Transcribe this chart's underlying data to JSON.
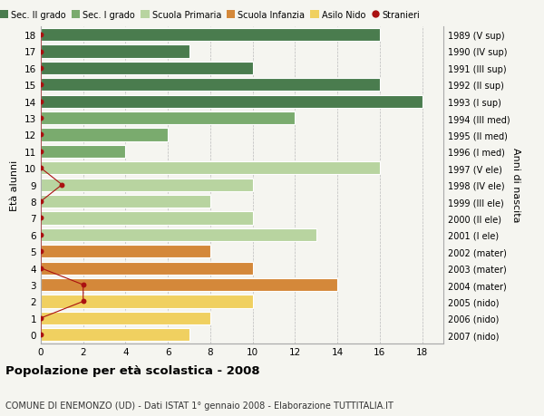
{
  "ages": [
    18,
    17,
    16,
    15,
    14,
    13,
    12,
    11,
    10,
    9,
    8,
    7,
    6,
    5,
    4,
    3,
    2,
    1,
    0
  ],
  "right_labels": [
    "1989 (V sup)",
    "1990 (IV sup)",
    "1991 (III sup)",
    "1992 (II sup)",
    "1993 (I sup)",
    "1994 (III med)",
    "1995 (II med)",
    "1996 (I med)",
    "1997 (V ele)",
    "1998 (IV ele)",
    "1999 (III ele)",
    "2000 (II ele)",
    "2001 (I ele)",
    "2002 (mater)",
    "2003 (mater)",
    "2004 (mater)",
    "2005 (nido)",
    "2006 (nido)",
    "2007 (nido)"
  ],
  "bar_values": [
    16,
    7,
    10,
    16,
    18,
    12,
    6,
    4,
    16,
    10,
    8,
    10,
    13,
    8,
    10,
    14,
    10,
    8,
    7
  ],
  "bar_colors": [
    "#4a7c4e",
    "#4a7c4e",
    "#4a7c4e",
    "#4a7c4e",
    "#4a7c4e",
    "#7aab6e",
    "#7aab6e",
    "#7aab6e",
    "#b8d4a0",
    "#b8d4a0",
    "#b8d4a0",
    "#b8d4a0",
    "#b8d4a0",
    "#d4883a",
    "#d4883a",
    "#d4883a",
    "#f0d060",
    "#f0d060",
    "#f0d060"
  ],
  "stranieri_x": [
    0,
    0,
    0,
    0,
    0,
    0,
    0,
    0,
    0,
    1,
    0,
    0,
    0,
    0,
    0,
    2,
    2,
    0,
    0
  ],
  "legend_labels": [
    "Sec. II grado",
    "Sec. I grado",
    "Scuola Primaria",
    "Scuola Infanzia",
    "Asilo Nido",
    "Stranieri"
  ],
  "legend_colors": [
    "#4a7c4e",
    "#7aab6e",
    "#b8d4a0",
    "#d4883a",
    "#f0d060",
    "#b22222"
  ],
  "title": "Popolazione per età scolastica - 2008",
  "subtitle": "COMUNE DI ENEMONZO (UD) - Dati ISTAT 1° gennaio 2008 - Elaborazione TUTTITALIA.IT",
  "ylabel": "Età alunni",
  "right_ylabel": "Anni di nascita",
  "xlabel_ticks": [
    0,
    2,
    4,
    6,
    8,
    10,
    12,
    14,
    16,
    18
  ],
  "xlim": [
    0,
    19
  ],
  "background_color": "#f5f5f0",
  "grid_color": "#bbbbbb",
  "bar_height": 0.78,
  "stranieri_color": "#aa1111"
}
